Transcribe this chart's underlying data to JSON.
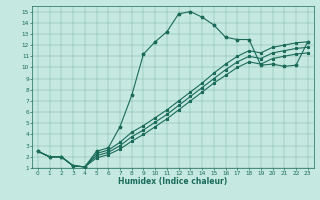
{
  "xlabel": "Humidex (Indice chaleur)",
  "bg_color": "#c5e8e0",
  "line_color": "#1a6b5a",
  "xlim": [
    -0.5,
    23.5
  ],
  "ylim": [
    1,
    15.5
  ],
  "xticks": [
    0,
    1,
    2,
    3,
    4,
    5,
    6,
    7,
    8,
    9,
    10,
    11,
    12,
    13,
    14,
    15,
    16,
    17,
    18,
    19,
    20,
    21,
    22,
    23
  ],
  "yticks": [
    1,
    2,
    3,
    4,
    5,
    6,
    7,
    8,
    9,
    10,
    11,
    12,
    13,
    14,
    15
  ],
  "curve_x": [
    0,
    1,
    2,
    3,
    4,
    5,
    6,
    7,
    8,
    9,
    10,
    11,
    12,
    13,
    14,
    15,
    16,
    17,
    18,
    19,
    20,
    21,
    22,
    23
  ],
  "curve_y": [
    2.5,
    2.0,
    2.0,
    1.2,
    1.1,
    2.5,
    2.8,
    4.7,
    7.5,
    11.2,
    12.3,
    13.2,
    14.8,
    15.0,
    14.5,
    13.8,
    12.7,
    12.5,
    12.5,
    10.2,
    10.3,
    10.1,
    10.2,
    12.3
  ],
  "line1_x": [
    0,
    1,
    2,
    3,
    4,
    5,
    6,
    7,
    8,
    9,
    10,
    11,
    12,
    13,
    14,
    15,
    16,
    17,
    18,
    19,
    20,
    21,
    22,
    23
  ],
  "line1_y": [
    2.5,
    2.0,
    2.0,
    1.2,
    1.1,
    2.3,
    2.6,
    3.3,
    4.2,
    4.8,
    5.5,
    6.2,
    7.0,
    7.8,
    8.6,
    9.5,
    10.3,
    11.0,
    11.5,
    11.3,
    11.8,
    12.0,
    12.2,
    12.3
  ],
  "line2_x": [
    0,
    1,
    2,
    3,
    4,
    5,
    6,
    7,
    8,
    9,
    10,
    11,
    12,
    13,
    14,
    15,
    16,
    17,
    18,
    19,
    20,
    21,
    22,
    23
  ],
  "line2_y": [
    2.5,
    2.0,
    2.0,
    1.2,
    1.1,
    2.1,
    2.4,
    3.0,
    3.8,
    4.4,
    5.1,
    5.8,
    6.6,
    7.4,
    8.2,
    9.0,
    9.8,
    10.5,
    11.0,
    10.8,
    11.3,
    11.5,
    11.7,
    11.8
  ],
  "line3_x": [
    0,
    1,
    2,
    3,
    4,
    5,
    6,
    7,
    8,
    9,
    10,
    11,
    12,
    13,
    14,
    15,
    16,
    17,
    18,
    19,
    20,
    21,
    22,
    23
  ],
  "line3_y": [
    2.5,
    2.0,
    2.0,
    1.2,
    1.1,
    1.9,
    2.2,
    2.7,
    3.4,
    4.0,
    4.7,
    5.4,
    6.2,
    7.0,
    7.8,
    8.6,
    9.3,
    10.0,
    10.5,
    10.3,
    10.8,
    11.0,
    11.2,
    11.3
  ]
}
